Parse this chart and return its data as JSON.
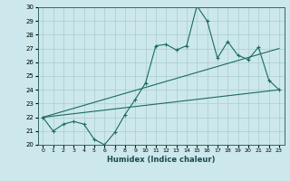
{
  "title": "",
  "xlabel": "Humidex (Indice chaleur)",
  "bg_color": "#cce8ec",
  "grid_color": "#aacccc",
  "line_color": "#1a6b60",
  "xlim": [
    -0.5,
    23.5
  ],
  "ylim": [
    20,
    30
  ],
  "xticks": [
    0,
    1,
    2,
    3,
    4,
    5,
    6,
    7,
    8,
    9,
    10,
    11,
    12,
    13,
    14,
    15,
    16,
    17,
    18,
    19,
    20,
    21,
    22,
    23
  ],
  "yticks": [
    20,
    21,
    22,
    23,
    24,
    25,
    26,
    27,
    28,
    29,
    30
  ],
  "main_data": [
    [
      0,
      22.0
    ],
    [
      1,
      21.0
    ],
    [
      2,
      21.5
    ],
    [
      3,
      21.7
    ],
    [
      4,
      21.5
    ],
    [
      5,
      20.4
    ],
    [
      6,
      20.0
    ],
    [
      7,
      20.9
    ],
    [
      8,
      22.2
    ],
    [
      9,
      23.3
    ],
    [
      10,
      24.5
    ],
    [
      11,
      27.2
    ],
    [
      12,
      27.3
    ],
    [
      13,
      26.9
    ],
    [
      14,
      27.2
    ],
    [
      15,
      30.1
    ],
    [
      16,
      29.0
    ],
    [
      17,
      26.3
    ],
    [
      18,
      27.5
    ],
    [
      19,
      26.5
    ],
    [
      20,
      26.2
    ],
    [
      21,
      27.1
    ],
    [
      22,
      24.7
    ],
    [
      23,
      24.0
    ]
  ],
  "line1_data": [
    [
      0,
      22.0
    ],
    [
      23,
      27.0
    ]
  ],
  "line2_data": [
    [
      0,
      22.0
    ],
    [
      23,
      24.0
    ]
  ]
}
